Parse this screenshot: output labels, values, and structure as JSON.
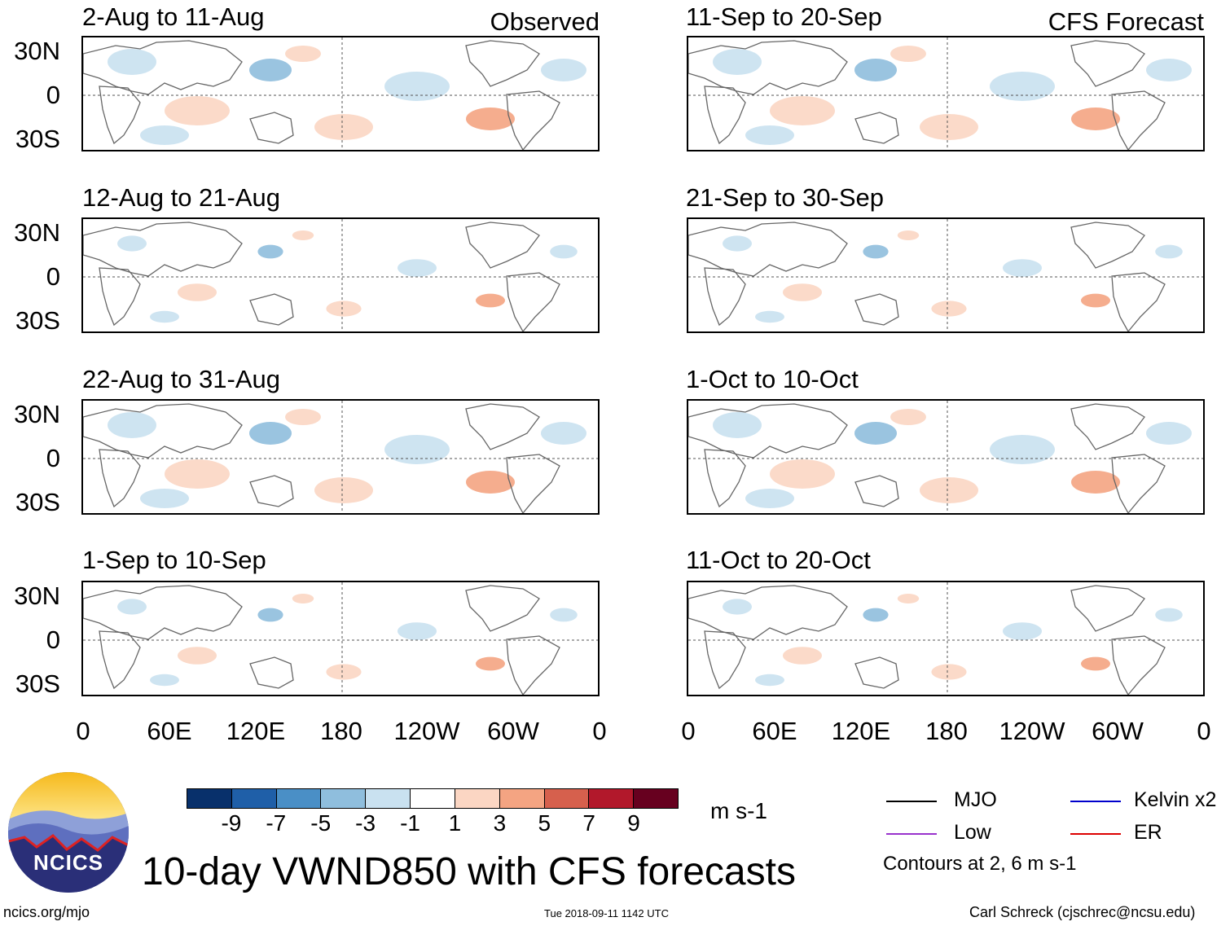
{
  "column_headers": {
    "observed": "Observed",
    "forecast": "CFS Forecast"
  },
  "observed_panels": [
    {
      "title": "2-Aug to 11-Aug"
    },
    {
      "title": "12-Aug to 21-Aug"
    },
    {
      "title": "22-Aug to 31-Aug"
    },
    {
      "title": "1-Sep to 10-Sep"
    }
  ],
  "forecast_panels": [
    {
      "title": "11-Sep to 20-Sep"
    },
    {
      "title": "21-Sep to 30-Sep"
    },
    {
      "title": "1-Oct to 10-Oct"
    },
    {
      "title": "11-Oct to 20-Oct"
    }
  ],
  "y_axis_labels": [
    "30N",
    "0",
    "30S"
  ],
  "x_axis_labels": [
    "0",
    "60E",
    "120E",
    "180",
    "120W",
    "60W",
    "0"
  ],
  "colorbar": {
    "colors": [
      "#08306b",
      "#1f5fa8",
      "#4a8fc6",
      "#8fbedd",
      "#c9e1f0",
      "#ffffff",
      "#fbd6c3",
      "#f4a482",
      "#d6604d",
      "#b2182b",
      "#67001f"
    ],
    "ticks": [
      "-9",
      "-7",
      "-5",
      "-3",
      "-1",
      "1",
      "3",
      "5",
      "7",
      "9"
    ],
    "units": "m s-1"
  },
  "legend": {
    "items": [
      {
        "label": "MJO",
        "color": "#000000"
      },
      {
        "label": "Kelvin x2",
        "color": "#0000cc"
      },
      {
        "label": "Low",
        "color": "#9932cc"
      },
      {
        "label": "ER",
        "color": "#dd0000"
      }
    ],
    "contours_note": "Contours at 2, 6 m s-1"
  },
  "main_title": "10-day VWND850 with CFS forecasts",
  "logo_text": "NCICS",
  "footer": {
    "url": "ncics.org/mjo",
    "timestamp": "Tue 2018-09-11 1142 UTC",
    "author": "Carl Schreck (cjschrec@ncsu.edu)"
  }
}
